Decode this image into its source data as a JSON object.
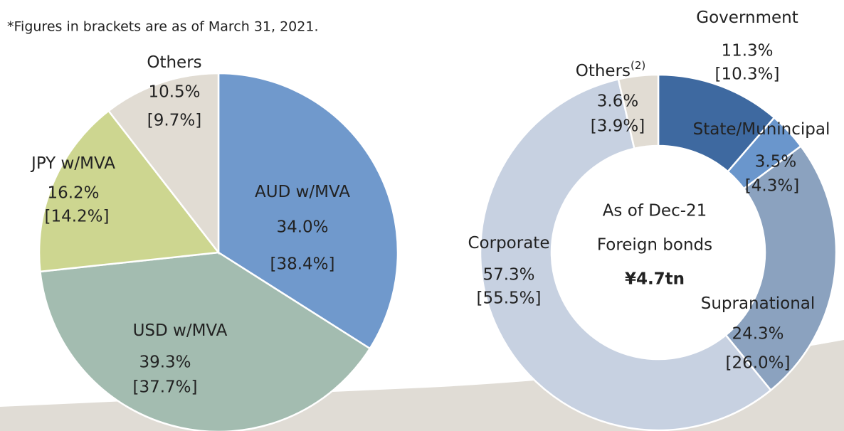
{
  "note": "*Figures in brackets are as of March 31, 2021.",
  "chart_data": [
    {
      "type": "pie",
      "categories": [
        "AUD w/MVA",
        "USD w/MVA",
        "JPY w/MVA",
        "Others"
      ],
      "values": [
        34.0,
        39.3,
        16.2,
        10.5
      ],
      "value_labels": [
        "34.0%",
        "39.3%",
        "16.2%",
        "10.5%"
      ],
      "previous_values": [
        38.4,
        37.7,
        14.2,
        9.7
      ],
      "previous_value_labels": [
        "[38.4%]",
        "[37.7%]",
        "[14.2%]",
        "[9.7%]"
      ],
      "colors": [
        "#7099cc",
        "#a3bcb0",
        "#cdd690",
        "#e1dcd3"
      ]
    },
    {
      "type": "donut",
      "categories": [
        "Government",
        "State/Munincipal",
        "Supranational",
        "Corporate",
        "Others"
      ],
      "category_footnotes": [
        null,
        null,
        null,
        null,
        "(2)"
      ],
      "values": [
        11.3,
        3.5,
        24.3,
        57.3,
        3.6
      ],
      "value_labels": [
        "11.3%",
        "3.5%",
        "24.3%",
        "57.3%",
        "3.6%"
      ],
      "previous_values": [
        10.3,
        4.3,
        26.0,
        55.5,
        3.9
      ],
      "previous_value_labels": [
        "[10.3%]",
        "[4.3%]",
        "[26.0%]",
        "[55.5%]",
        "[3.9%]"
      ],
      "colors": [
        "#3e69a0",
        "#6a96cc",
        "#8ba2bf",
        "#c7d1e1",
        "#e1dcd3"
      ],
      "center_text": [
        "As of Dec-21",
        "Foreign bonds",
        "¥4.7tn"
      ]
    }
  ]
}
